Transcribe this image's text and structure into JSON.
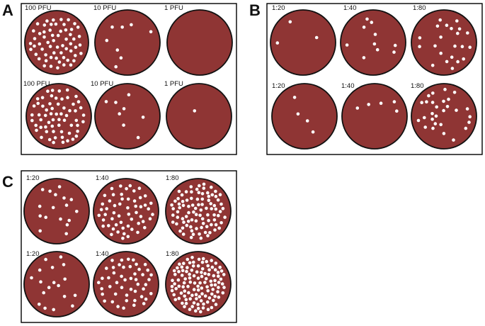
{
  "colors": {
    "well": "#8f3534",
    "plaque": "#ffffff",
    "border": "#000000"
  },
  "panels": [
    {
      "letter": "A",
      "rows": [
        {
          "wells": [
            {
              "label": "100 PFU",
              "plaques": 60
            },
            {
              "label": "10 PFU",
              "plaques": 8
            },
            {
              "label": "1 PFU",
              "plaques": 0
            }
          ]
        },
        {
          "wells": [
            {
              "label": "100 PFU",
              "plaques": 62
            },
            {
              "label": "10 PFU",
              "plaques": 8
            },
            {
              "label": "1 PFU",
              "plaques": 1
            }
          ]
        }
      ]
    },
    {
      "letter": "B",
      "rows": [
        {
          "wells": [
            {
              "label": "1:20",
              "plaques": 3
            },
            {
              "label": "1:40",
              "plaques": 10
            },
            {
              "label": "1:80",
              "plaques": 22
            }
          ]
        },
        {
          "wells": [
            {
              "label": "1:20",
              "plaques": 4
            },
            {
              "label": "1:40",
              "plaques": 5
            },
            {
              "label": "1:80",
              "plaques": 28
            }
          ]
        }
      ]
    },
    {
      "letter": "C",
      "rows": [
        {
          "wells": [
            {
              "label": "1:20",
              "plaques": 17
            },
            {
              "label": "1:40",
              "plaques": 55
            },
            {
              "label": "1:80",
              "plaques": 90
            }
          ]
        },
        {
          "wells": [
            {
              "label": "1:20",
              "plaques": 18
            },
            {
              "label": "1:40",
              "plaques": 48
            },
            {
              "label": "1:80",
              "plaques": 115
            }
          ]
        }
      ]
    }
  ]
}
